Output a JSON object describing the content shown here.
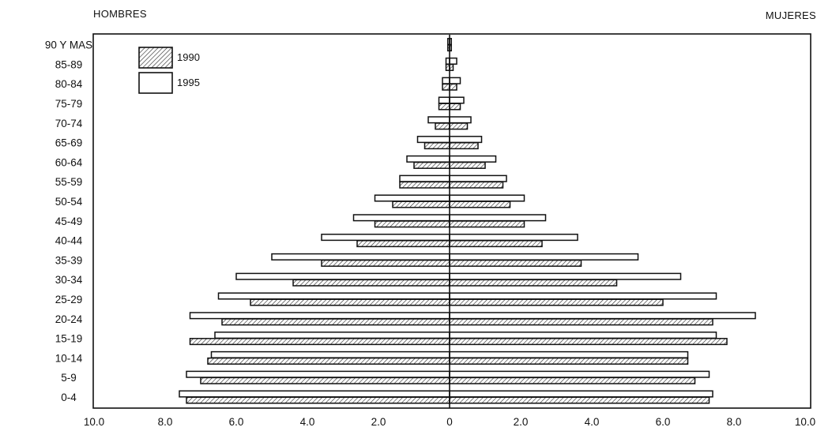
{
  "chart_data": {
    "type": "bar",
    "orientation": "horizontal-population-pyramid",
    "left_label": "HOMBRES",
    "right_label": "MUJERES",
    "categories": [
      "0-4",
      "5-9",
      "10-14",
      "15-19",
      "20-24",
      "25-29",
      "30-34",
      "35-39",
      "40-44",
      "45-49",
      "50-54",
      "55-59",
      "60-64",
      "65-69",
      "70-74",
      "75-79",
      "80-84",
      "85-89",
      "90 Y MAS"
    ],
    "x_ticks": [
      "10.0",
      "8.0",
      "6.0",
      "4.0",
      "2.0",
      "0",
      "2.0",
      "4.0",
      "6.0",
      "8.0",
      "10.0"
    ],
    "xlim": [
      -10,
      10
    ],
    "legend": {
      "placement": "top-left",
      "entries": [
        {
          "label": "1990",
          "pattern": "hatched"
        },
        {
          "label": "1995",
          "pattern": "white"
        }
      ]
    },
    "series": [
      {
        "name": "1990",
        "hombres": [
          7.4,
          7.0,
          6.8,
          7.3,
          6.4,
          5.6,
          4.4,
          3.6,
          2.6,
          2.1,
          1.6,
          1.4,
          1.0,
          0.7,
          0.4,
          0.3,
          0.2,
          0.1,
          0.05
        ],
        "mujeres": [
          7.3,
          6.9,
          6.7,
          7.8,
          7.4,
          6.0,
          4.7,
          3.7,
          2.6,
          2.1,
          1.7,
          1.5,
          1.0,
          0.8,
          0.5,
          0.3,
          0.2,
          0.1,
          0.05
        ]
      },
      {
        "name": "1995",
        "hombres": [
          7.6,
          7.4,
          6.7,
          6.6,
          7.3,
          6.5,
          6.0,
          5.0,
          3.6,
          2.7,
          2.1,
          1.4,
          1.2,
          0.9,
          0.6,
          0.3,
          0.2,
          0.1,
          0.05
        ],
        "mujeres": [
          7.4,
          7.3,
          6.7,
          7.5,
          8.6,
          7.5,
          6.5,
          5.3,
          3.6,
          2.7,
          2.1,
          1.6,
          1.3,
          0.9,
          0.6,
          0.4,
          0.3,
          0.2,
          0.05
        ]
      }
    ]
  }
}
